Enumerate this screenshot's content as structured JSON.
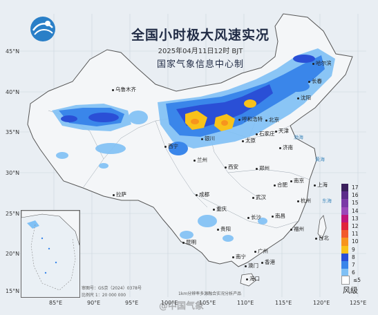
{
  "header": {
    "title": "全国小时极大风速实况",
    "subtitle": "2025年04月11日12时 BJT",
    "agency": "国家气象信息中心制"
  },
  "latitude_labels": [
    "45°N",
    "40°N",
    "35°N",
    "30°N",
    "25°N",
    "20°N",
    "15°N"
  ],
  "longitude_labels": [
    "85°E",
    "90°E",
    "95°E",
    "100°E",
    "105°E",
    "110°E",
    "115°E",
    "120°E",
    "125°E"
  ],
  "cities": [
    {
      "name": "乌鲁木齐"
    },
    {
      "name": "哈尔滨"
    },
    {
      "name": "长春"
    },
    {
      "name": "沈阳"
    },
    {
      "name": "北京"
    },
    {
      "name": "天津"
    },
    {
      "name": "呼和浩特"
    },
    {
      "name": "石家庄"
    },
    {
      "name": "银川"
    },
    {
      "name": "济南"
    },
    {
      "name": "太原"
    },
    {
      "name": "西宁"
    },
    {
      "name": "兰州"
    },
    {
      "name": "郑州"
    },
    {
      "name": "西安"
    },
    {
      "name": "合肥"
    },
    {
      "name": "南京"
    },
    {
      "name": "上海"
    },
    {
      "name": "武汉"
    },
    {
      "name": "成都"
    },
    {
      "name": "杭州"
    },
    {
      "name": "重庆"
    },
    {
      "name": "拉萨"
    },
    {
      "name": "长沙"
    },
    {
      "name": "南昌"
    },
    {
      "name": "福州"
    },
    {
      "name": "贵阳"
    },
    {
      "name": "台北"
    },
    {
      "name": "昆明"
    },
    {
      "name": "广州"
    },
    {
      "name": "南宁"
    },
    {
      "name": "澳门"
    },
    {
      "name": "香港"
    },
    {
      "name": "海口"
    }
  ],
  "seas": [
    "渤海",
    "黄海",
    "东海"
  ],
  "legend": {
    "title": "风级",
    "items": [
      {
        "label": "17",
        "color": "#3a1f5c"
      },
      {
        "label": "16",
        "color": "#5b2b8a"
      },
      {
        "label": "15",
        "color": "#7a3aa6"
      },
      {
        "label": "14",
        "color": "#9b49b9"
      },
      {
        "label": "13",
        "color": "#c0167a"
      },
      {
        "label": "12",
        "color": "#e0243c"
      },
      {
        "label": "11",
        "color": "#f25a2a"
      },
      {
        "label": "10",
        "color": "#f7941d"
      },
      {
        "label": "9",
        "color": "#f8c21a"
      },
      {
        "label": "8",
        "color": "#2a4fd6"
      },
      {
        "label": "7",
        "color": "#3a86ea"
      },
      {
        "label": "6",
        "color": "#7fc0f5"
      },
      {
        "label": "≤5",
        "color": "#ffffff"
      }
    ]
  },
  "footnotes": {
    "review_number": "审图号：GS京（2024）0378号",
    "scale": "比例尺 1：20 000 000",
    "source": "1km分辨率多源融合实况分析产品"
  },
  "watermark": "@中国气象"
}
